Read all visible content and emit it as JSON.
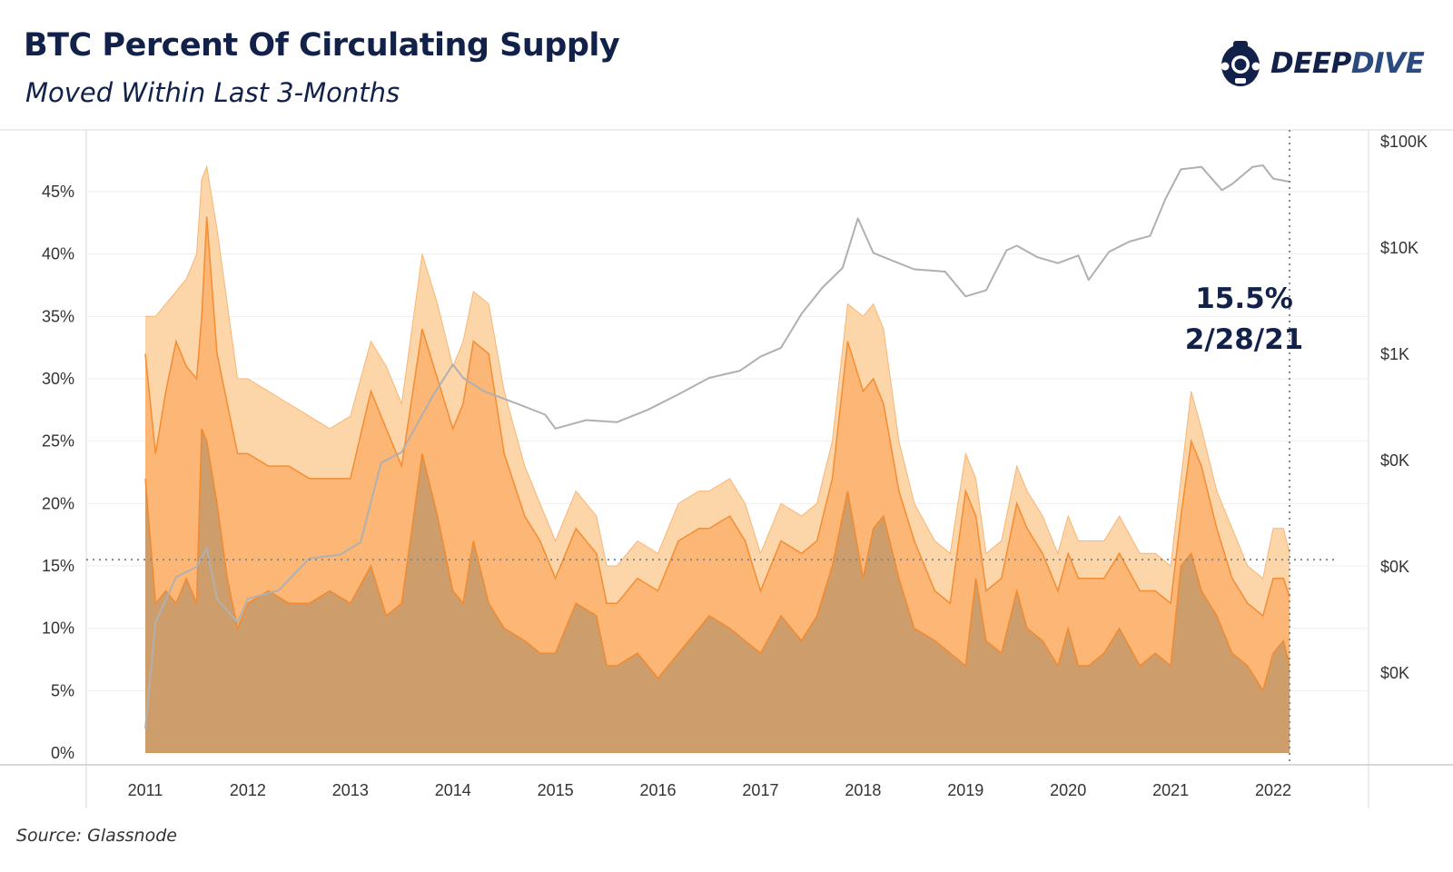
{
  "header": {
    "title": "BTC Percent Of Circulating Supply",
    "subtitle": "Moved Within Last 3-Months"
  },
  "logo": {
    "word_a": "DEEP",
    "word_b": "DIVE"
  },
  "footer": {
    "source": "Source: Glassnode"
  },
  "annotation": {
    "value": "15.5%",
    "date": "2/28/21"
  },
  "colors": {
    "band_light": "#fcd3a4",
    "band_mid": "#fcb370",
    "band_base": "#c99a6b",
    "band_edge": "#f2872a",
    "price_line": "#b0b0b0",
    "guide": "#888888",
    "text_dark": "#12214a"
  },
  "chart_data": {
    "type": "area",
    "title": "BTC Percent Of Circulating Supply",
    "subtitle": "Moved Within Last 3-Months",
    "x_ticks": [
      "2011",
      "2012",
      "2013",
      "2014",
      "2015",
      "2016",
      "2017",
      "2018",
      "2019",
      "2020",
      "2021",
      "2022"
    ],
    "y_ticks_left": [
      "0%",
      "5%",
      "10%",
      "15%",
      "20%",
      "25%",
      "30%",
      "35%",
      "40%",
      "45%"
    ],
    "y_ticks_right": [
      "$100K",
      "$10K",
      "$1K",
      "$0K",
      "$0K",
      "$0K"
    ],
    "ylim_left": [
      0,
      48
    ],
    "reference_line": 15.5,
    "x": [
      2011.0,
      2011.1,
      2011.2,
      2011.3,
      2011.4,
      2011.5,
      2011.55,
      2011.6,
      2011.7,
      2011.8,
      2011.9,
      2012.0,
      2012.2,
      2012.4,
      2012.6,
      2012.8,
      2013.0,
      2013.2,
      2013.35,
      2013.5,
      2013.7,
      2013.85,
      2014.0,
      2014.1,
      2014.2,
      2014.35,
      2014.5,
      2014.7,
      2014.85,
      2015.0,
      2015.2,
      2015.4,
      2015.5,
      2015.6,
      2015.8,
      2016.0,
      2016.2,
      2016.4,
      2016.5,
      2016.7,
      2016.85,
      2017.0,
      2017.2,
      2017.4,
      2017.55,
      2017.7,
      2017.85,
      2018.0,
      2018.1,
      2018.2,
      2018.35,
      2018.5,
      2018.7,
      2018.85,
      2019.0,
      2019.1,
      2019.2,
      2019.35,
      2019.5,
      2019.6,
      2019.75,
      2019.9,
      2020.0,
      2020.1,
      2020.2,
      2020.35,
      2020.5,
      2020.7,
      2020.85,
      2021.0,
      2021.1,
      2021.2,
      2021.3,
      2021.45,
      2021.6,
      2021.75,
      2021.9,
      2022.0,
      2022.1,
      2022.16
    ],
    "series": [
      {
        "values": [
          35,
          35,
          36,
          37,
          38,
          40,
          46,
          47,
          42,
          36,
          30,
          30,
          29,
          28,
          27,
          26,
          27,
          33,
          31,
          28,
          40,
          36,
          31,
          33,
          37,
          36,
          29,
          23,
          20,
          17,
          21,
          19,
          15,
          15,
          17,
          16,
          20,
          21,
          21,
          22,
          20,
          16,
          20,
          19,
          20,
          25,
          36,
          35,
          36,
          34,
          25,
          20,
          17,
          16,
          24,
          22,
          16,
          17,
          23,
          21,
          19,
          16,
          19,
          17,
          17,
          17,
          19,
          16,
          16,
          15,
          22,
          29,
          26,
          21,
          18,
          15,
          14,
          18,
          18,
          16
        ]
      },
      {
        "values": [
          32,
          24,
          29,
          33,
          31,
          30,
          35,
          43,
          32,
          28,
          24,
          24,
          23,
          23,
          22,
          22,
          22,
          29,
          26,
          23,
          34,
          30,
          26,
          28,
          33,
          32,
          24,
          19,
          17,
          14,
          18,
          16,
          12,
          12,
          14,
          13,
          17,
          18,
          18,
          19,
          17,
          13,
          17,
          16,
          17,
          22,
          33,
          29,
          30,
          28,
          21,
          17,
          13,
          12,
          21,
          19,
          13,
          14,
          20,
          18,
          16,
          13,
          16,
          14,
          14,
          14,
          16,
          13,
          13,
          12,
          19,
          25,
          23,
          18,
          14,
          12,
          11,
          14,
          14,
          12.5
        ]
      },
      {
        "values": [
          22,
          12,
          13,
          12,
          14,
          12,
          26,
          25,
          20,
          14,
          10,
          12,
          13,
          12,
          12,
          13,
          12,
          15,
          11,
          12,
          24,
          19,
          13,
          12,
          17,
          12,
          10,
          9,
          8,
          8,
          12,
          11,
          7,
          7,
          8,
          6,
          8,
          10,
          11,
          10,
          9,
          8,
          11,
          9,
          11,
          15,
          21,
          14,
          18,
          19,
          14,
          10,
          9,
          8,
          7,
          14,
          9,
          8,
          13,
          10,
          9,
          7,
          10,
          7,
          7,
          8,
          10,
          7,
          8,
          7,
          15,
          16,
          13,
          11,
          8,
          7,
          5,
          8,
          9,
          7
        ]
      },
      {
        "x": [
          2011.0,
          2011.1,
          2011.3,
          2011.5,
          2011.6,
          2011.7,
          2011.9,
          2012.0,
          2012.3,
          2012.6,
          2012.9,
          2013.1,
          2013.3,
          2013.5,
          2013.8,
          2014.0,
          2014.1,
          2014.3,
          2014.6,
          2014.9,
          2015.0,
          2015.3,
          2015.6,
          2015.9,
          2016.2,
          2016.5,
          2016.8,
          2017.0,
          2017.2,
          2017.4,
          2017.6,
          2017.8,
          2017.95,
          2018.1,
          2018.3,
          2018.5,
          2018.8,
          2019.0,
          2019.2,
          2019.4,
          2019.5,
          2019.7,
          2019.9,
          2020.1,
          2020.2,
          2020.4,
          2020.6,
          2020.8,
          2020.95,
          2021.1,
          2021.3,
          2021.5,
          2021.6,
          2021.8,
          2021.9,
          2022.0,
          2022.16
        ],
        "values": [
          0.3,
          3,
          8,
          10,
          15,
          5,
          3,
          5,
          6,
          12,
          13,
          17,
          95,
          120,
          400,
          800,
          600,
          450,
          350,
          270,
          200,
          240,
          230,
          300,
          420,
          600,
          700,
          950,
          1150,
          2400,
          4200,
          6500,
          19000,
          9000,
          7500,
          6300,
          6000,
          3500,
          4000,
          9500,
          10500,
          8200,
          7200,
          8500,
          5000,
          9200,
          11500,
          13000,
          29000,
          55000,
          58000,
          35000,
          40000,
          58000,
          60000,
          45000,
          42000
        ]
      }
    ]
  }
}
